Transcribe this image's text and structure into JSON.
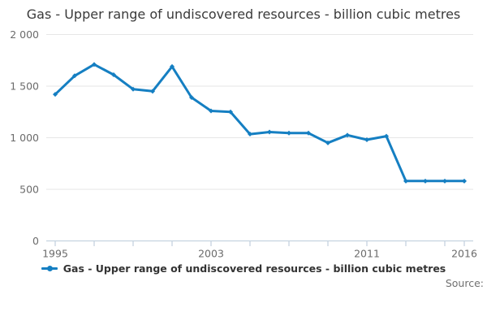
{
  "title": "Gas - Upper range of undiscovered resources - billion cubic metres",
  "legend": {
    "label": "Gas - Upper range of undiscovered resources - billion cubic metres"
  },
  "source_label": "Source:",
  "colors": {
    "line": "#157fc2",
    "grid": "#e6e6e6",
    "axis": "#c5d3e0",
    "tick_label": "#6b6b6b",
    "title_text": "#3a3a3a",
    "legend_text": "#333333",
    "source_text": "#707070"
  },
  "chart_data": {
    "type": "line",
    "title": "Gas - Upper range of undiscovered resources - billion cubic metres",
    "xlabel": "",
    "ylabel": "",
    "x": [
      1995,
      1996,
      1997,
      1998,
      1999,
      2000,
      2001,
      2002,
      2003,
      2004,
      2005,
      2006,
      2007,
      2008,
      2009,
      2010,
      2011,
      2012,
      2013,
      2014,
      2015,
      2016
    ],
    "values": [
      1420,
      1600,
      1710,
      1610,
      1470,
      1450,
      1690,
      1390,
      1260,
      1250,
      1035,
      1055,
      1045,
      1045,
      950,
      1025,
      980,
      1015,
      580,
      580,
      580,
      580
    ],
    "series_name": "Gas - Upper range of undiscovered resources - billion cubic metres",
    "ylim": [
      0,
      2000
    ],
    "xlim": [
      1995,
      2016
    ],
    "y_ticks": [
      {
        "value": 0,
        "label": "0"
      },
      {
        "value": 500,
        "label": "500"
      },
      {
        "value": 1000,
        "label": "1 000"
      },
      {
        "value": 1500,
        "label": "1 500"
      },
      {
        "value": 2000,
        "label": "2 000"
      }
    ],
    "x_tick_years": [
      1995,
      1997,
      1999,
      2001,
      2003,
      2005,
      2007,
      2009,
      2011,
      2013,
      2015,
      2016
    ],
    "x_label_ticks": [
      {
        "value": 1995,
        "label": "1995"
      },
      {
        "value": 2003,
        "label": "2003"
      },
      {
        "value": 2011,
        "label": "2011"
      },
      {
        "value": 2016,
        "label": "2016"
      }
    ],
    "grid": true,
    "legend_position": "bottom",
    "marker": "diamond"
  }
}
